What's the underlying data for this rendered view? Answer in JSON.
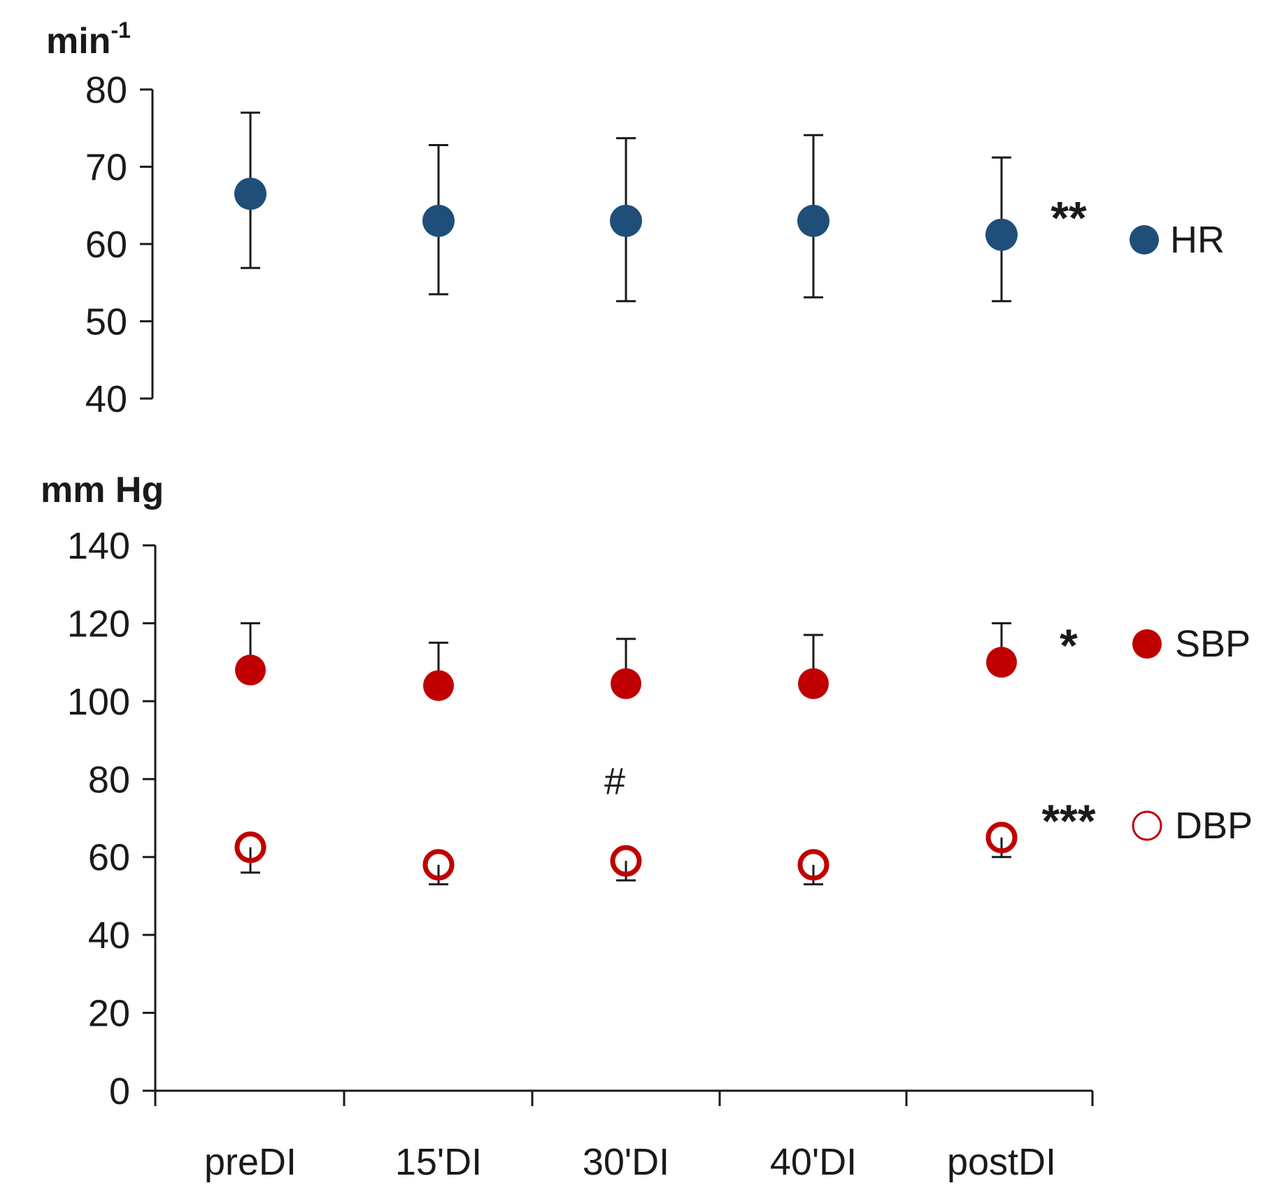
{
  "chart_data": [
    {
      "type": "scatter",
      "unit_label": "min",
      "unit_superscript": "-1",
      "categories": [
        "preDI",
        "15'DI",
        "30'DI",
        "40'DI",
        "postDI"
      ],
      "ylim": [
        40,
        80
      ],
      "yticks": [
        40,
        50,
        60,
        70,
        80
      ],
      "series": [
        {
          "name": "HR",
          "color": "#1f4e79",
          "filled": true,
          "values": [
            66.5,
            63,
            63,
            63,
            61.2
          ],
          "err_upper": [
            77,
            72.8,
            73.7,
            74.1,
            71.2
          ],
          "err_lower": [
            56.9,
            53.5,
            52.6,
            53.1,
            52.6
          ],
          "significance": "**"
        }
      ]
    },
    {
      "type": "scatter",
      "unit_label": "mm Hg",
      "categories": [
        "preDI",
        "15'DI",
        "30'DI",
        "40'DI",
        "postDI"
      ],
      "ylim": [
        0,
        140
      ],
      "yticks": [
        0,
        20,
        40,
        60,
        80,
        100,
        120,
        140
      ],
      "xlabel": "",
      "series": [
        {
          "name": "SBP",
          "color": "#c00000",
          "filled": true,
          "values": [
            108,
            104,
            104.5,
            104.5,
            110
          ],
          "err_upper": [
            120,
            115,
            116,
            117,
            120
          ],
          "significance": "*"
        },
        {
          "name": "DBP",
          "color": "#c00000",
          "filled": false,
          "values": [
            62.5,
            58,
            59,
            58,
            65
          ],
          "err_lower": [
            56,
            53,
            54,
            53,
            60
          ],
          "significance": "***"
        }
      ],
      "annotations": [
        {
          "text": "#",
          "category": "30'DI",
          "y": 78
        }
      ]
    }
  ]
}
